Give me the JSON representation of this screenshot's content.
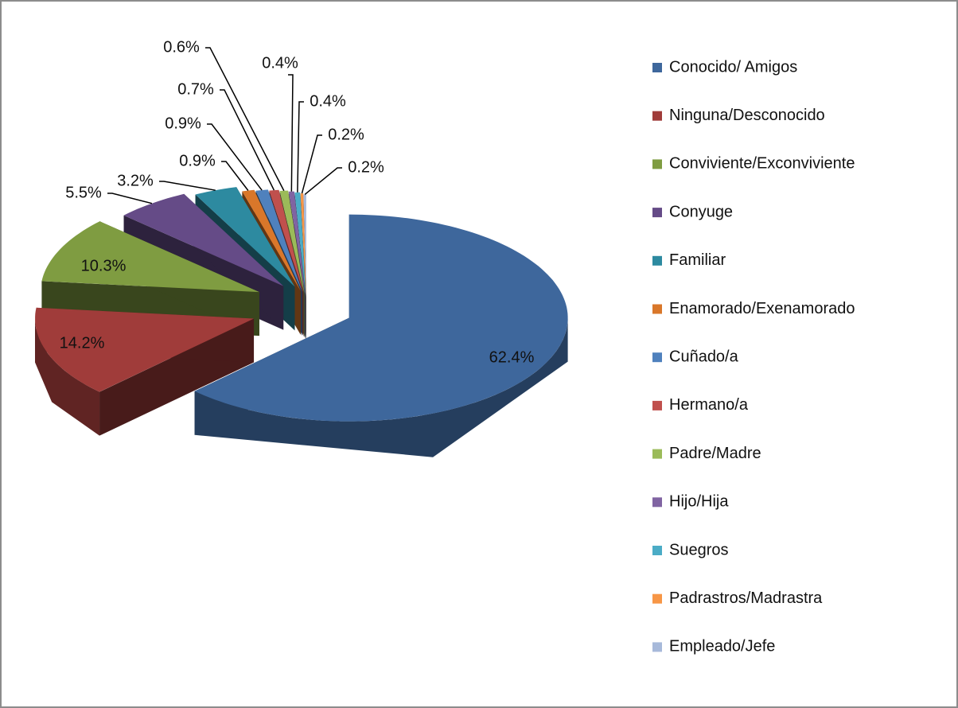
{
  "chart_data": {
    "type": "pie3d",
    "categories": [
      "Conocido/ Amigos",
      "Ninguna/Desconocido",
      "Conviviente/Exconviviente",
      "Conyuge",
      "Familiar",
      "Enamorado/Exenamorado",
      "Cuñado/a",
      "Hermano/a",
      "Padre/Madre",
      "Hijo/Hija",
      "Suegros",
      "Padrastros/Madrastra",
      "Empleado/Jefe"
    ],
    "values": [
      62.4,
      14.2,
      10.3,
      5.5,
      3.2,
      0.9,
      0.9,
      0.7,
      0.6,
      0.4,
      0.4,
      0.2,
      0.2
    ],
    "value_labels": [
      "62.4%",
      "14.2%",
      "10.3%",
      "5.5%",
      "3.2%",
      "0.9%",
      "0.9%",
      "0.7%",
      "0.6%",
      "0.4%",
      "0.4%",
      "0.2%",
      "0.2%"
    ],
    "colors": [
      "#3e679c",
      "#a03c3a",
      "#7f9c41",
      "#654b87",
      "#2d8aa0",
      "#d9772a",
      "#4f81bd",
      "#c0504d",
      "#9bbb59",
      "#8064a2",
      "#4bacc6",
      "#f79646",
      "#a7b9da"
    ],
    "legend": "right"
  }
}
